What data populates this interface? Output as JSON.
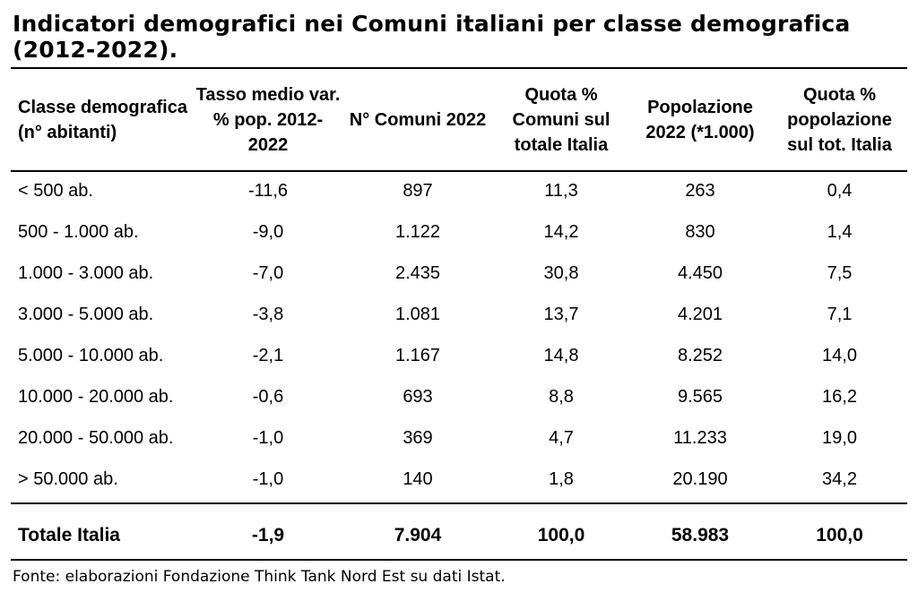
{
  "title": "Indicatori demografici nei Comuni italiani per classe demografica (2012-2022).",
  "table": {
    "headers": [
      "Classe demografica (n° abitanti)",
      "Tasso medio var. % pop. 2012-2022",
      "N° Comuni 2022",
      "Quota % Comuni sul totale Italia",
      "Popolazione 2022 (*1.000)",
      "Quota % popolazione sul tot. Italia"
    ],
    "rows": [
      [
        "< 500 ab.",
        "-11,6",
        "897",
        "11,3",
        "263",
        "0,4"
      ],
      [
        "500 - 1.000 ab.",
        "-9,0",
        "1.122",
        "14,2",
        "830",
        "1,4"
      ],
      [
        "1.000 - 3.000 ab.",
        "-7,0",
        "2.435",
        "30,8",
        "4.450",
        "7,5"
      ],
      [
        "3.000 - 5.000 ab.",
        "-3,8",
        "1.081",
        "13,7",
        "4.201",
        "7,1"
      ],
      [
        "5.000 - 10.000 ab.",
        "-2,1",
        "1.167",
        "14,8",
        "8.252",
        "14,0"
      ],
      [
        "10.000 - 20.000 ab.",
        "-0,6",
        "693",
        "8,8",
        "9.565",
        "16,2"
      ],
      [
        "20.000 - 50.000 ab.",
        "-1,0",
        "369",
        "4,7",
        "11.233",
        "19,0"
      ],
      [
        "> 50.000 ab.",
        "-1,0",
        "140",
        "1,8",
        "20.190",
        "34,2"
      ]
    ],
    "total": [
      "Totale Italia",
      "-1,9",
      "7.904",
      "100,0",
      "58.983",
      "100,0"
    ]
  },
  "source": "Fonte: elaborazioni Fondazione Think Tank Nord Est su dati Istat."
}
